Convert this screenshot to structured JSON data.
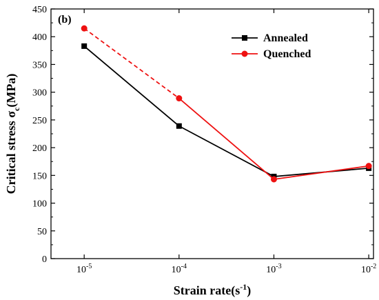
{
  "chart_data": {
    "type": "line",
    "panel_label": "(b)",
    "xlabel": {
      "main": "Strain rate(s",
      "sup": "-1",
      "tail": ")"
    },
    "ylabel": {
      "main": "Critical stress σ",
      "sub": "c",
      "tail": "(MPa)"
    },
    "x_scale": "log",
    "x": [
      1e-05,
      0.0001,
      0.001,
      0.01
    ],
    "x_tick_labels": [
      {
        "base": "10",
        "exp": "-5"
      },
      {
        "base": "10",
        "exp": "-4"
      },
      {
        "base": "10",
        "exp": "-3"
      },
      {
        "base": "10",
        "exp": "-2"
      }
    ],
    "ylim": [
      0,
      450
    ],
    "y_ticks": [
      0,
      50,
      100,
      150,
      200,
      250,
      300,
      350,
      400,
      450
    ],
    "legend_position": "top-right",
    "series": [
      {
        "name": "Annealed",
        "color": "#000000",
        "marker": "square",
        "values": [
          383,
          239,
          148,
          163
        ],
        "dashed_segments": []
      },
      {
        "name": "Quenched",
        "color": "#ee1111",
        "marker": "circle",
        "values": [
          415,
          289,
          143,
          167
        ],
        "dashed_segments": [
          0
        ]
      }
    ]
  }
}
